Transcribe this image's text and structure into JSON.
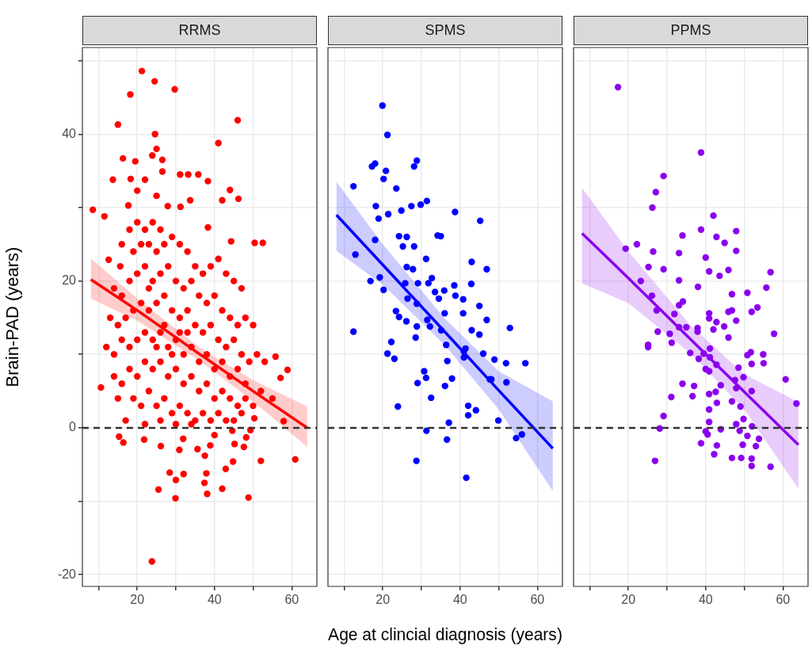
{
  "chart_data": [
    {
      "type": "scatter",
      "title": "RRMS",
      "ylabel": "Brain-PAD (years)",
      "xlim": [
        5.8,
        66.5
      ],
      "ylim": [
        -21.6,
        51.8
      ],
      "xticks": [
        {
          "value": 10,
          "label": null
        },
        20,
        {
          "value": 30,
          "label": null
        },
        40,
        {
          "value": 50,
          "label": null
        },
        60
      ],
      "yticks": [
        {
          "value": -20,
          "label": "-20"
        },
        {
          "value": -10,
          "label": null
        },
        0,
        {
          "value": 10,
          "label": null
        },
        20,
        {
          "value": 30,
          "label": null
        },
        40,
        {
          "value": 50,
          "label": null
        }
      ],
      "grid": true,
      "ref_lines": [
        {
          "axis": "y",
          "value": 0,
          "color": "#333333",
          "line_style": "dashed"
        }
      ],
      "series": [
        {
          "marker": "circle",
          "color": "#ff0000",
          "x": [
            21.2,
            24.5,
            29.7,
            18.2,
            46,
            15,
            24.6,
            41,
            25,
            16.3,
            19.5,
            23.9,
            26.5,
            26.5,
            31.1,
            33.2,
            35.8,
            38.3,
            13.7,
            18.3,
            22,
            20,
            44,
            25,
            42,
            46.2,
            33.7,
            8.5,
            11.5,
            17.7,
            27.9,
            31.2,
            52.5,
            50.4,
            44.3,
            38.3,
            12.6,
            15.6,
            23.8,
            29.9,
            48.8,
            38.1,
            42,
            25.5,
            37.4,
            28.4,
            30,
            32,
            37.9,
            42.9,
            44.8,
            52,
            60.9,
            10.6,
            55.8,
            58.9,
            57.1,
            57.9,
            37.5,
            35.6,
            38.9,
            16.4,
            15.3,
            21.8,
            26.1,
            30.9,
            31.9,
            40,
            44.6,
            45.2,
            47.6,
            48.2,
            49.3,
            50.3,
            16,
            18,
            20,
            22,
            24,
            26,
            19,
            21,
            23,
            25,
            27,
            29,
            31,
            33,
            35,
            37,
            39,
            41,
            43,
            45,
            47,
            14,
            16,
            18,
            20,
            22,
            24,
            26,
            28,
            30,
            32,
            34,
            36,
            38,
            40,
            42,
            44,
            46,
            48,
            50,
            13,
            15,
            17,
            19,
            21,
            23,
            25,
            27,
            29,
            31,
            33,
            35,
            37,
            39,
            41,
            43,
            45,
            47,
            49,
            51,
            12,
            14,
            16,
            18,
            20,
            22,
            24,
            26,
            28,
            30,
            32,
            34,
            36,
            38,
            40,
            42,
            44,
            46,
            48,
            53,
            14,
            16,
            18,
            20,
            22,
            24,
            26,
            28,
            30,
            32,
            34,
            36,
            38,
            40,
            42,
            44,
            46,
            48,
            50,
            52,
            15,
            19,
            21,
            23,
            25,
            27,
            29,
            31,
            33,
            35,
            37,
            39,
            41,
            43,
            45,
            47,
            55,
            17,
            22,
            26,
            30,
            34,
            23,
            27,
            29,
            31,
            25,
            33
          ],
          "values": [
            48.6,
            47.2,
            46.1,
            45.4,
            41.9,
            41.3,
            40,
            38.8,
            38,
            36.7,
            36.3,
            37.1,
            36.5,
            34.9,
            34.5,
            34.5,
            34.5,
            33.6,
            33.8,
            33.9,
            33.8,
            32.3,
            32.4,
            31.6,
            31,
            31.2,
            31,
            29.7,
            28.8,
            30.3,
            30.2,
            30.1,
            25.2,
            25.2,
            25.4,
            27.3,
            22.9,
            22,
            -18.2,
            -9.6,
            -9.5,
            -9,
            -8.3,
            -8.4,
            -7.5,
            -6.1,
            -7.1,
            -6.3,
            -6.2,
            -5.6,
            -4.6,
            -4.5,
            -4.3,
            5.5,
            9.7,
            7.9,
            6.8,
            0.9,
            -3.8,
            -2.9,
            -2.4,
            -2,
            -1.2,
            -1.6,
            -2.5,
            -3,
            -1.5,
            -1,
            -0.4,
            -2.2,
            -2.6,
            -1.3,
            -0.3,
            1.3,
            25,
            27,
            28,
            27,
            28,
            27,
            24,
            25,
            25,
            24,
            25,
            26,
            25,
            24,
            22,
            21,
            22,
            23,
            21,
            20,
            19,
            19,
            18,
            20,
            21,
            22,
            20,
            21,
            22,
            20,
            19,
            20,
            18,
            17,
            18,
            16,
            15,
            14,
            15,
            14,
            15,
            14,
            15,
            16,
            17,
            16,
            17,
            18,
            16,
            15,
            16,
            14,
            13,
            14,
            12,
            11,
            12,
            10,
            9,
            10,
            11,
            10,
            12,
            11,
            12,
            13,
            12,
            13,
            11,
            12,
            10,
            11,
            9,
            10,
            8,
            9,
            7,
            8,
            6,
            9,
            7,
            6,
            8,
            7,
            9,
            8,
            9,
            7,
            8,
            6,
            7,
            5,
            6,
            4,
            5,
            4,
            3,
            4,
            3,
            5,
            4,
            4,
            3,
            5,
            3,
            4,
            2,
            3,
            2,
            1,
            2,
            1,
            2,
            1,
            1,
            2,
            4,
            1,
            0.5,
            1,
            0.5,
            0.5,
            19,
            14,
            10,
            13,
            11,
            13
          ]
        },
        {
          "type": "line",
          "color": "#ff0000",
          "x": [
            8,
            20,
            36,
            50,
            64
          ],
          "values": [
            20.2,
            16,
            10.1,
            5,
            0
          ],
          "lower": [
            17.6,
            14.6,
            9.2,
            3.6,
            -2.6
          ],
          "upper": [
            23.1,
            17.6,
            11,
            6.5,
            2.9
          ]
        }
      ]
    },
    {
      "type": "scatter",
      "title": "SPMS",
      "xlabel": "Age at clincial diagnosis (years)",
      "tick_labels": "x",
      "xlim": [
        5.8,
        66.5
      ],
      "ylim": [
        -21.6,
        51.8
      ],
      "xticks": [
        {
          "value": 10,
          "label": null
        },
        20,
        {
          "value": 30,
          "label": null
        },
        40,
        {
          "value": 50,
          "label": null
        },
        60
      ],
      "yticks": [
        -20,
        -10,
        0,
        10,
        20,
        30,
        40,
        50
      ],
      "grid": true,
      "ref_lines": [
        {
          "axis": "y",
          "value": 0,
          "color": "#333333",
          "line_style": "dashed"
        }
      ],
      "series": [
        {
          "marker": "circle",
          "color": "#0000ff",
          "x": [
            19.9,
            21.2,
            17.2,
            18,
            28.1,
            28.8,
            20.8,
            20.2,
            12.4,
            23.5,
            18.2,
            27.4,
            29.8,
            31.4,
            21.4,
            24.8,
            38.7,
            45.2,
            18.9,
            24.2,
            26.2,
            25.2,
            28.1,
            34.2,
            35,
            18,
            12.9,
            31.2,
            43,
            46.9,
            26.2,
            27.8,
            16.8,
            19.2,
            20.2,
            25.8,
            29.1,
            32.7,
            31.8,
            33.5,
            35.9,
            34.5,
            38.5,
            42.9,
            38.8,
            40.8,
            45,
            40.8,
            46.9,
            52.9,
            26.4,
            28.8,
            23.4,
            24.2,
            26.1,
            28.8,
            31.5,
            32.2,
            36,
            12.4,
            28.5,
            35.1,
            43,
            45,
            22.2,
            21.2,
            23,
            36.4,
            41,
            41.4,
            41,
            46,
            48.9,
            51.9,
            56.9,
            36.7,
            30.7,
            31.2,
            29,
            37.9,
            36.1,
            47.7,
            48.1,
            52,
            32.5,
            23.9,
            42.1,
            44.1,
            42.1,
            49.9,
            37.1,
            31.3,
            36.6,
            54.5,
            56,
            28.7,
            41.6
          ],
          "values": [
            43.9,
            39.9,
            35.6,
            36,
            35.6,
            36.4,
            35,
            33.9,
            32.9,
            32.6,
            30.2,
            30.2,
            30.4,
            30.9,
            29.1,
            29.6,
            29.4,
            28.2,
            28.5,
            26.1,
            26,
            24.7,
            24.7,
            26.2,
            26.1,
            25.6,
            23.6,
            23,
            22.6,
            21.6,
            21.9,
            21.6,
            20,
            20.5,
            18.8,
            19.7,
            19.7,
            20.4,
            19.7,
            18.5,
            18.7,
            17.6,
            19.4,
            19.6,
            18,
            17.5,
            16.6,
            15.6,
            14.7,
            13.6,
            17.6,
            16.9,
            15.9,
            15.1,
            14.5,
            13.8,
            14.7,
            13.8,
            15.6,
            13.1,
            12.3,
            13.3,
            13.3,
            12.7,
            11.7,
            10.1,
            9.4,
            11.3,
            10.4,
            10.8,
            9.6,
            10.1,
            9.3,
            8.8,
            8.8,
            9.1,
            7.7,
            6.8,
            6.1,
            6.7,
            5.7,
            6.6,
            6.6,
            6.2,
            4.1,
            2.9,
            3,
            2.4,
            1.7,
            1,
            0.7,
            -0.4,
            -1.6,
            -1.4,
            -0.9,
            -4.5,
            -6.8
          ]
        },
        {
          "type": "line",
          "color": "#0000ff",
          "x": [
            8,
            20,
            36,
            50,
            64
          ],
          "values": [
            29,
            22.2,
            13.1,
            5.1,
            -2.8
          ],
          "lower": [
            24.1,
            19.5,
            11.3,
            2.5,
            -8.6
          ],
          "upper": [
            33.5,
            25,
            14.9,
            7.7,
            3.6
          ]
        }
      ]
    },
    {
      "type": "scatter",
      "title": "PPMS",
      "tick_labels": "x",
      "xlim": [
        5.8,
        66.5
      ],
      "ylim": [
        -21.6,
        51.8
      ],
      "xticks": [
        {
          "value": 10,
          "label": null
        },
        20,
        {
          "value": 30,
          "label": null
        },
        40,
        {
          "value": 50,
          "label": null
        },
        60
      ],
      "yticks": [
        -20,
        -10,
        0,
        10,
        20,
        30,
        40,
        50
      ],
      "grid": true,
      "ref_lines": [
        {
          "axis": "y",
          "value": 0,
          "color": "#333333",
          "line_style": "dashed"
        }
      ],
      "series": [
        {
          "marker": "circle",
          "color": "#8b00ee",
          "x": [
            17.3,
            38.8,
            29.1,
            27.1,
            26.2,
            42,
            38.8,
            47.9,
            34,
            42.8,
            44.9,
            22.2,
            19.3,
            26.4,
            33.1,
            47.9,
            40,
            25.2,
            29.1,
            40.9,
            45.9,
            43.6,
            56.8,
            23.2,
            33.1,
            38,
            55.7,
            46.8,
            50.8,
            26.1,
            33.1,
            34.1,
            27.3,
            31.9,
            40.9,
            40.9,
            45.9,
            46.8,
            51.9,
            53.4,
            47.9,
            42.8,
            44.8,
            42,
            35,
            37.9,
            37.9,
            33.1,
            27.6,
            30.7,
            45.9,
            57.7,
            25.1,
            25.1,
            31.2,
            36,
            38.2,
            39.5,
            41.1,
            41.1,
            50.8,
            51.7,
            54.9,
            51.9,
            55,
            42.8,
            48.5,
            40,
            40.9,
            49.8,
            47.6,
            60.7,
            34,
            37,
            43.9,
            47.9,
            51.9,
            31.1,
            36.6,
            40.9,
            42.6,
            63.5,
            42.9,
            46.8,
            49,
            40.9,
            29.1,
            40.9,
            49.8,
            47.9,
            28.1,
            43.9,
            48.8,
            52,
            40,
            40.5,
            50.8,
            53.8,
            38.8,
            42.9,
            49.6,
            53,
            42.2,
            46.8,
            49.2,
            51.9,
            51.9,
            56.8,
            26.9
          ],
          "values": [
            46.4,
            37.5,
            34.3,
            32.1,
            30,
            28.9,
            27,
            26.8,
            26.2,
            26,
            25.2,
            25,
            24.4,
            24,
            23.8,
            24.1,
            23.2,
            21.9,
            21.6,
            21.3,
            21.5,
            20.7,
            21.2,
            20,
            20.1,
            19.2,
            19.1,
            18.2,
            18.4,
            18,
            16.7,
            17.2,
            16,
            15.5,
            15.6,
            14.9,
            15.8,
            16,
            15.8,
            16.4,
            14.6,
            14.4,
            13.8,
            13.4,
            13.7,
            13.6,
            13.1,
            13.7,
            13.1,
            12.8,
            12.3,
            12.8,
            11.3,
            11,
            11.6,
            10.2,
            9.4,
            10.1,
            10.8,
            9.6,
            9.9,
            10.3,
            10,
            8.7,
            8.8,
            8.6,
            8.2,
            8,
            7.7,
            6.9,
            6.5,
            6.6,
            6,
            5.7,
            5.8,
            5.4,
            5,
            4.2,
            4.3,
            4.6,
            4.9,
            3.3,
            3.4,
            3.6,
            2.9,
            2.5,
            1.6,
            0.8,
            1.2,
            0.5,
            -0.1,
            -0.2,
            -0.4,
            0.2,
            -0.5,
            -0.9,
            -1.1,
            -1.5,
            -2.1,
            -2.4,
            -2.3,
            -2.5,
            -3.6,
            -4.1,
            -4.1,
            -4.2,
            -5.2,
            -5.3,
            -4.5
          ]
        },
        {
          "type": "line",
          "color": "#8b00ee",
          "x": [
            8,
            20,
            36,
            50,
            64
          ],
          "values": [
            26.5,
            20.4,
            12.1,
            4.9,
            -2.3
          ],
          "lower": [
            19.7,
            17,
            10.2,
            2.5,
            -8.3
          ],
          "upper": [
            32.7,
            24,
            14,
            7.3,
            3.5
          ]
        }
      ]
    }
  ]
}
